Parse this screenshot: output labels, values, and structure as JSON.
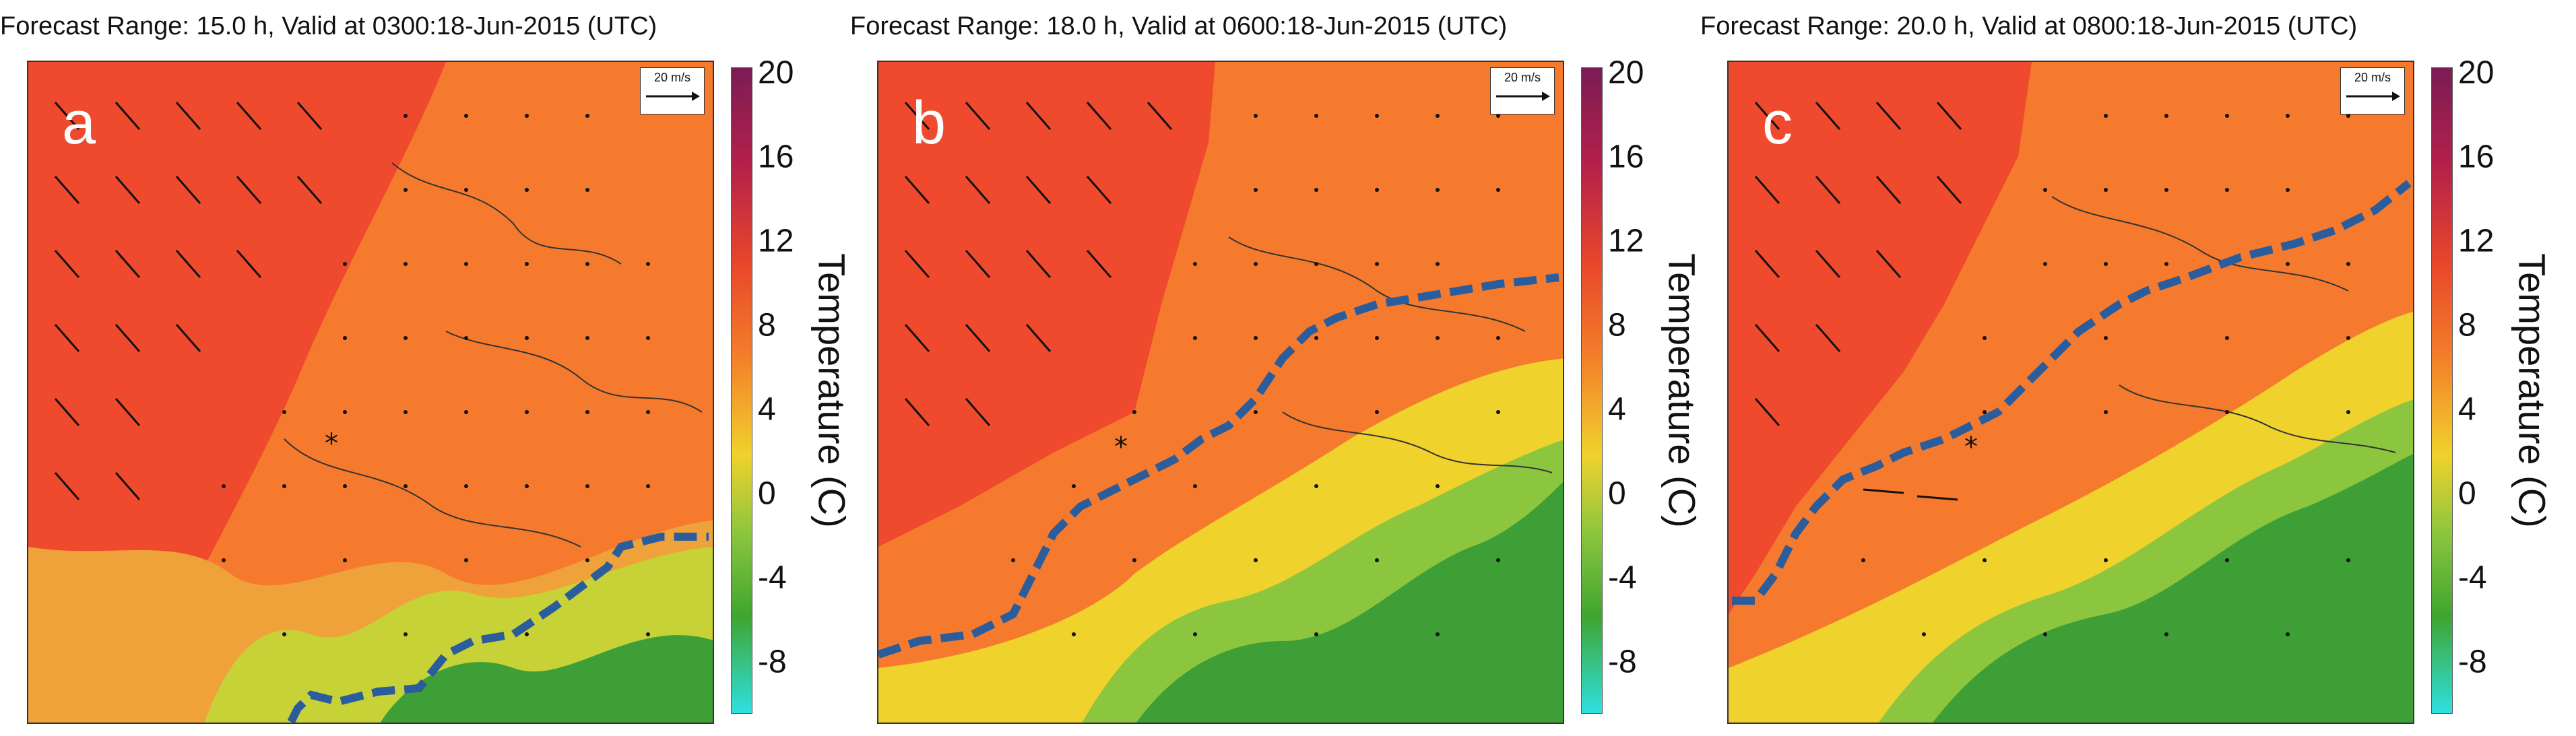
{
  "colorbar": {
    "label": "Temperature (C)",
    "ticks": [
      "20",
      "16",
      "12",
      "8",
      "4",
      "0",
      "-4",
      "-8"
    ],
    "tick_values": [
      20,
      16,
      12,
      8,
      4,
      0,
      -4,
      -8
    ],
    "range": [
      -10,
      20
    ],
    "colors": {
      "top": "#7b1c55",
      "red": "#e8462b",
      "orange": "#f47f2a",
      "yellow": "#f0d22c",
      "green": "#3fa52f",
      "cyan": "#2ee0e0"
    }
  },
  "colors": {
    "warm_air": "#ef4a2d",
    "mid_air": "#f57a2e",
    "cool_air": "#3e9f37",
    "front_line": "#2b5c9c"
  },
  "chart_data": [
    {
      "type": "heatmap",
      "title": "Forecast Range: 15.0 h, Valid at 0300:18-Jun-2015  (UTC)",
      "panel_letter": "a",
      "wind_reference_label": "20 m/s",
      "marker": "*"
    },
    {
      "type": "heatmap",
      "title": "Forecast Range: 18.0 h, Valid at 0600:18-Jun-2015  (UTC)",
      "panel_letter": "b",
      "wind_reference_label": "20 m/s",
      "marker": "*"
    },
    {
      "type": "heatmap",
      "title": "Forecast Range: 20.0 h, Valid at 0800:18-Jun-2015  (UTC)",
      "panel_letter": "c",
      "wind_reference_label": "20 m/s",
      "marker": "*"
    }
  ]
}
